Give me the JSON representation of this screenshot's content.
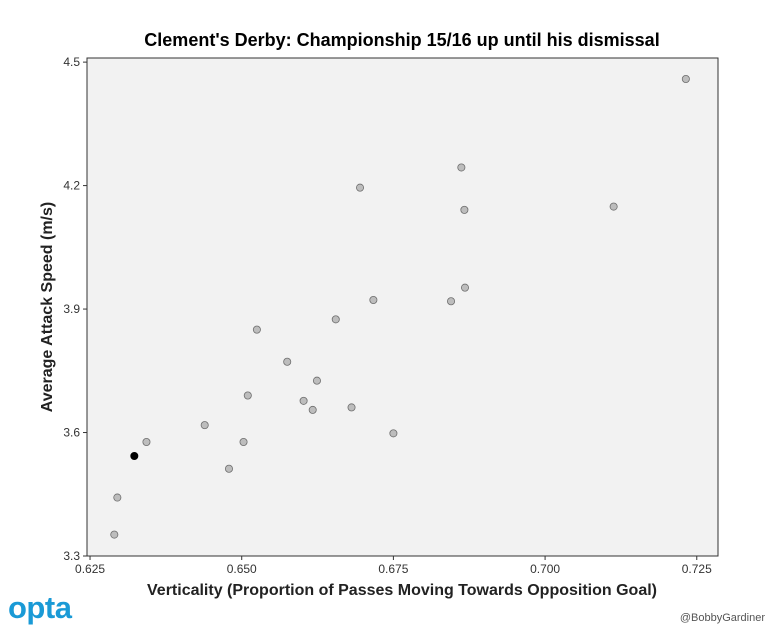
{
  "chart_data": {
    "type": "scatter",
    "title": "Clement's Derby: Championship 15/16 up until his dismissal",
    "xlabel": "Verticality (Proportion of Passes Moving Towards Opposition Goal)",
    "ylabel": "Average Attack Speed (m/s)",
    "xlim": [
      0.6245,
      0.7285
    ],
    "ylim": [
      3.3,
      4.51
    ],
    "xticks": [
      0.625,
      0.65,
      0.675,
      0.7,
      0.725
    ],
    "xtick_labels": [
      "0.625",
      "0.650",
      "0.675",
      "0.700",
      "0.725"
    ],
    "yticks": [
      3.3,
      3.6,
      3.9,
      4.2,
      4.5
    ],
    "ytick_labels": [
      "3.3",
      "3.6",
      "3.9",
      "4.2",
      "4.5"
    ],
    "grid": false,
    "background": "#f2f2f2",
    "point_color": "#bdbdbd",
    "highlight_color": "#000000",
    "points": [
      {
        "x": 0.629,
        "y": 3.352
      },
      {
        "x": 0.6295,
        "y": 3.442
      },
      {
        "x": 0.6323,
        "y": 3.543,
        "highlight": true
      },
      {
        "x": 0.6343,
        "y": 3.577
      },
      {
        "x": 0.6439,
        "y": 3.618
      },
      {
        "x": 0.6479,
        "y": 3.512
      },
      {
        "x": 0.6503,
        "y": 3.577
      },
      {
        "x": 0.651,
        "y": 3.69
      },
      {
        "x": 0.6525,
        "y": 3.85
      },
      {
        "x": 0.6575,
        "y": 3.772
      },
      {
        "x": 0.6602,
        "y": 3.677
      },
      {
        "x": 0.6617,
        "y": 3.655
      },
      {
        "x": 0.6624,
        "y": 3.726
      },
      {
        "x": 0.6655,
        "y": 3.875
      },
      {
        "x": 0.6681,
        "y": 3.661
      },
      {
        "x": 0.6695,
        "y": 4.195
      },
      {
        "x": 0.6717,
        "y": 3.922
      },
      {
        "x": 0.675,
        "y": 3.598
      },
      {
        "x": 0.6845,
        "y": 3.919
      },
      {
        "x": 0.6862,
        "y": 4.244
      },
      {
        "x": 0.6867,
        "y": 4.141
      },
      {
        "x": 0.6868,
        "y": 3.952
      },
      {
        "x": 0.7113,
        "y": 4.149
      },
      {
        "x": 0.7232,
        "y": 4.459
      }
    ]
  },
  "branding": {
    "logo_text": "opta",
    "credit": "@BobbyGardiner"
  }
}
